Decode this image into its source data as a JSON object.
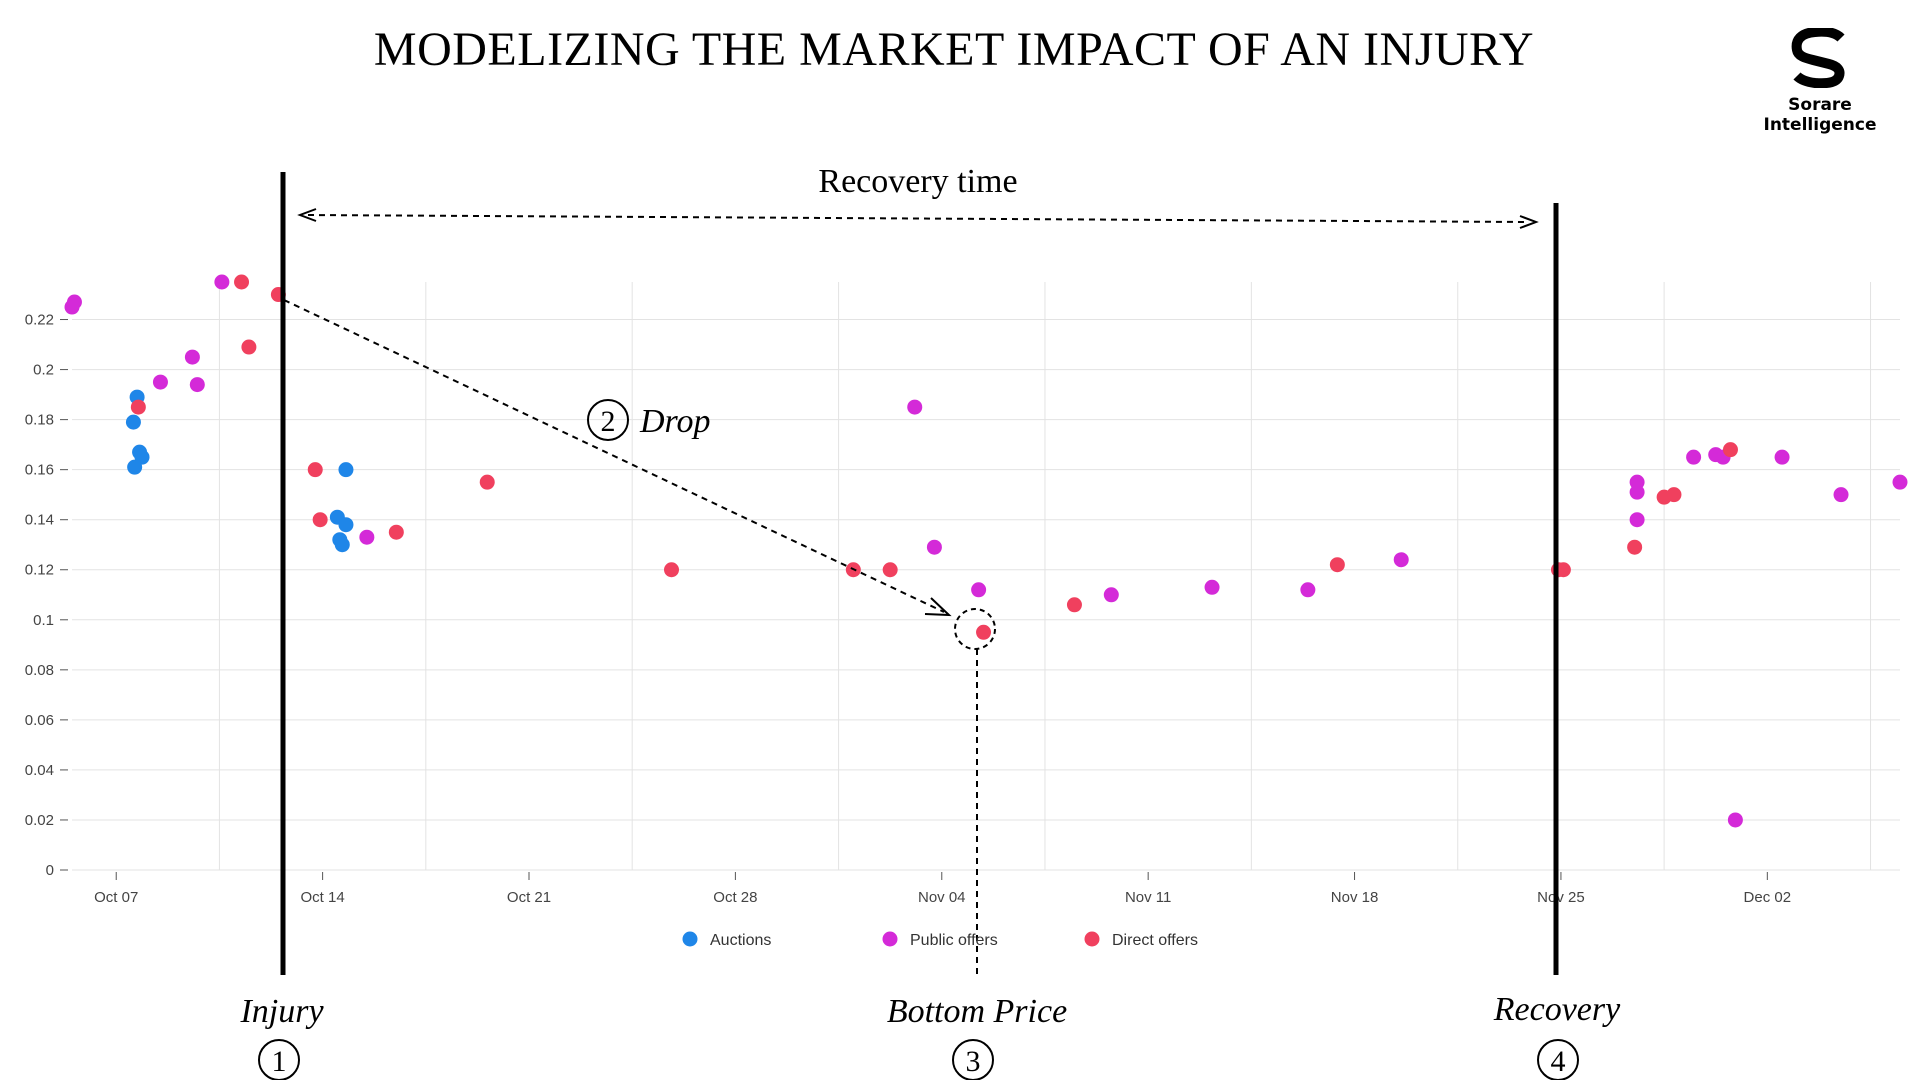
{
  "title": "MODELIZING THE MARKET IMPACT OF AN INJURY",
  "logo": {
    "text": "Sorare Intelligence",
    "icon": "sorare-s-logo"
  },
  "annotations": {
    "recovery_time": "Recovery time",
    "drop_number": "2",
    "drop_label": "Drop",
    "injury_label": "Injury",
    "injury_number": "1",
    "bottom_label": "Bottom Price",
    "bottom_number": "3",
    "recovery_label": "Recovery",
    "recovery_number": "4"
  },
  "colors": {
    "auctions": "#1f86e8",
    "public_offers": "#d42ad8",
    "direct_offers": "#f0405e"
  },
  "chart_data": {
    "type": "scatter",
    "title": "",
    "xlabel": "",
    "ylabel": "",
    "x_ticks": [
      "Oct 07",
      "Oct 14",
      "Oct 21",
      "Oct 28",
      "Nov 04",
      "Nov 11",
      "Nov 18",
      "Nov 25",
      "Dec 02"
    ],
    "y_ticks": [
      "0",
      "0.02",
      "0.04",
      "0.06",
      "0.08",
      "0.1",
      "0.12",
      "0.14",
      "0.16",
      "0.18",
      "0.2",
      "0.22"
    ],
    "xlim": [
      "2021-10-05 12:00",
      "2021-12-06 12:00"
    ],
    "ylim": [
      0,
      0.235
    ],
    "grid": true,
    "legend_position": "bottom-center",
    "series": [
      {
        "name": "Auctions",
        "color": "#1f86e8",
        "points": [
          [
            "2021-10-07 14:00",
            0.179
          ],
          [
            "2021-10-07 17:00",
            0.189
          ],
          [
            "2021-10-07 19:00",
            0.167
          ],
          [
            "2021-10-07 21:00",
            0.165
          ],
          [
            "2021-10-07 15:00",
            0.161
          ],
          [
            "2021-10-14 12:00",
            0.141
          ],
          [
            "2021-10-14 19:00",
            0.16
          ],
          [
            "2021-10-14 19:00",
            0.138
          ],
          [
            "2021-10-14 14:00",
            0.132
          ],
          [
            "2021-10-14 16:00",
            0.13
          ]
        ]
      },
      {
        "name": "Public offers",
        "color": "#d42ad8",
        "points": [
          [
            "2021-10-05 12:00",
            0.225
          ],
          [
            "2021-10-05 14:00",
            0.227
          ],
          [
            "2021-10-08 12:00",
            0.195
          ],
          [
            "2021-10-09 14:00",
            0.205
          ],
          [
            "2021-10-09 18:00",
            0.194
          ],
          [
            "2021-10-10 14:00",
            0.235
          ],
          [
            "2021-10-15 12:00",
            0.133
          ],
          [
            "2021-11-03 02:00",
            0.185
          ],
          [
            "2021-11-03 18:00",
            0.129
          ],
          [
            "2021-11-05 06:00",
            0.112
          ],
          [
            "2021-11-09 18:00",
            0.11
          ],
          [
            "2021-11-13 04:00",
            0.113
          ],
          [
            "2021-11-16 10:00",
            0.112
          ],
          [
            "2021-11-19 14:00",
            0.124
          ],
          [
            "2021-11-27 14:00",
            0.155
          ],
          [
            "2021-11-27 14:00",
            0.151
          ],
          [
            "2021-11-27 14:00",
            0.14
          ],
          [
            "2021-11-29 12:00",
            0.165
          ],
          [
            "2021-11-30 06:00",
            0.166
          ],
          [
            "2021-11-30 12:00",
            0.165
          ],
          [
            "2021-11-30 22:00",
            0.02
          ],
          [
            "2021-12-02 12:00",
            0.165
          ],
          [
            "2021-12-04 12:00",
            0.15
          ],
          [
            "2021-12-06 12:00",
            0.155
          ]
        ]
      },
      {
        "name": "Direct offers",
        "color": "#f0405e",
        "points": [
          [
            "2021-10-07 18:00",
            0.185
          ],
          [
            "2021-10-11 06:00",
            0.235
          ],
          [
            "2021-10-11 12:00",
            0.209
          ],
          [
            "2021-10-12 12:00",
            0.23
          ],
          [
            "2021-10-13 18:00",
            0.16
          ],
          [
            "2021-10-13 22:00",
            0.14
          ],
          [
            "2021-10-16 12:00",
            0.135
          ],
          [
            "2021-10-19 14:00",
            0.155
          ],
          [
            "2021-10-25 20:00",
            0.12
          ],
          [
            "2021-11-01 00:00",
            0.12
          ],
          [
            "2021-11-02 06:00",
            0.12
          ],
          [
            "2021-11-05 10:00",
            0.095
          ],
          [
            "2021-11-08 12:00",
            0.106
          ],
          [
            "2021-11-17 10:00",
            0.122
          ],
          [
            "2021-11-24 22:00",
            0.12
          ],
          [
            "2021-11-25 02:00",
            0.12
          ],
          [
            "2021-11-27 12:00",
            0.129
          ],
          [
            "2021-11-28 12:00",
            0.149
          ],
          [
            "2021-11-28 20:00",
            0.15
          ],
          [
            "2021-11-30 18:00",
            0.168
          ]
        ]
      }
    ],
    "markers": [
      {
        "x": "2021-10-12 18:00",
        "label": "Injury"
      },
      {
        "x": "2021-11-05 10:00",
        "label": "Bottom Price"
      },
      {
        "x": "2021-11-25 12:00",
        "label": "Recovery"
      }
    ]
  }
}
